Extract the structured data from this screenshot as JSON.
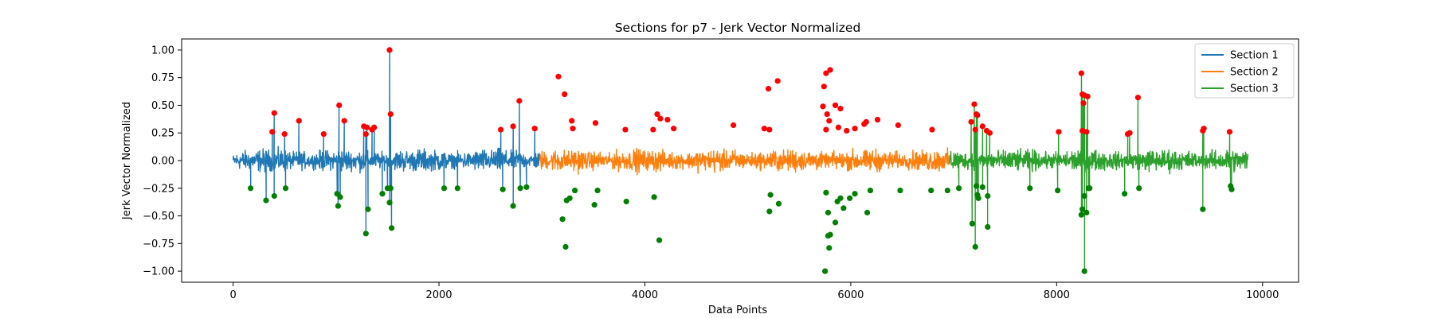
{
  "chart_data": {
    "type": "line",
    "title": "Sections for p7 - Jerk Vector Normalized",
    "xlabel": "Data Points",
    "ylabel": "Jerk Vector Normalized",
    "xlim": [
      -500,
      10350
    ],
    "ylim": [
      -1.1,
      1.1
    ],
    "xticks": [
      0,
      2000,
      4000,
      6000,
      8000,
      10000
    ],
    "yticks": [
      -1.0,
      -0.75,
      -0.5,
      -0.25,
      0.0,
      0.25,
      0.5,
      0.75,
      1.0
    ],
    "xtick_labels": [
      "0",
      "2000",
      "4000",
      "6000",
      "8000",
      "10000"
    ],
    "ytick_labels": [
      "−1.00",
      "−0.75",
      "−0.50",
      "−0.25",
      "0.00",
      "0.25",
      "0.50",
      "0.75",
      "1.00"
    ],
    "legend_position": "top-right",
    "grid": false,
    "series": [
      {
        "name": "Section 1",
        "color": "#1f77b4",
        "x_range": [
          0,
          2980
        ],
        "spikes": [
          [
            400,
            0.43
          ],
          [
            380,
            0.26
          ],
          [
            500,
            0.24
          ],
          [
            640,
            0.36
          ],
          [
            880,
            0.24
          ],
          [
            1030,
            0.5
          ],
          [
            1080,
            0.36
          ],
          [
            1270,
            0.31
          ],
          [
            1300,
            0.3
          ],
          [
            1290,
            0.24
          ],
          [
            1350,
            0.28
          ],
          [
            1370,
            0.3
          ],
          [
            1520,
            1.0
          ],
          [
            1530,
            0.42
          ],
          [
            2600,
            0.28
          ],
          [
            2720,
            0.31
          ],
          [
            2780,
            0.54
          ],
          [
            2930,
            0.29
          ],
          [
            170,
            -0.25
          ],
          [
            320,
            -0.36
          ],
          [
            400,
            -0.32
          ],
          [
            510,
            -0.25
          ],
          [
            1010,
            -0.3
          ],
          [
            1020,
            -0.41
          ],
          [
            1040,
            -0.33
          ],
          [
            1290,
            -0.66
          ],
          [
            1310,
            -0.44
          ],
          [
            1450,
            -0.3
          ],
          [
            1500,
            -0.25
          ],
          [
            1530,
            -0.25
          ],
          [
            1520,
            -0.38
          ],
          [
            1540,
            -0.61
          ],
          [
            2050,
            -0.25
          ],
          [
            2180,
            -0.25
          ],
          [
            2620,
            -0.26
          ],
          [
            2720,
            -0.41
          ],
          [
            2790,
            -0.25
          ],
          [
            2850,
            -0.24
          ]
        ]
      },
      {
        "name": "Section 2",
        "color": "#ff7f0e",
        "x_range": [
          2980,
          6960
        ],
        "spikes": [
          [
            3160,
            0.76
          ],
          [
            3220,
            0.6
          ],
          [
            3290,
            0.36
          ],
          [
            3300,
            0.29
          ],
          [
            3520,
            0.34
          ],
          [
            3810,
            0.28
          ],
          [
            4080,
            0.28
          ],
          [
            4120,
            0.42
          ],
          [
            4150,
            0.38
          ],
          [
            4220,
            0.37
          ],
          [
            4280,
            0.29
          ],
          [
            4860,
            0.32
          ],
          [
            5160,
            0.29
          ],
          [
            5210,
            0.28
          ],
          [
            5200,
            0.65
          ],
          [
            5290,
            0.72
          ],
          [
            5730,
            0.49
          ],
          [
            5740,
            0.67
          ],
          [
            5760,
            0.79
          ],
          [
            5800,
            0.82
          ],
          [
            5770,
            0.42
          ],
          [
            5790,
            0.36
          ],
          [
            5760,
            0.28
          ],
          [
            5850,
            0.5
          ],
          [
            5900,
            0.47
          ],
          [
            5880,
            0.3
          ],
          [
            5960,
            0.27
          ],
          [
            6040,
            0.29
          ],
          [
            6130,
            0.33
          ],
          [
            6150,
            0.35
          ],
          [
            6260,
            0.37
          ],
          [
            6460,
            0.32
          ],
          [
            6790,
            0.28
          ],
          [
            3200,
            -0.53
          ],
          [
            3230,
            -0.78
          ],
          [
            3240,
            -0.36
          ],
          [
            3270,
            -0.34
          ],
          [
            3320,
            -0.27
          ],
          [
            3510,
            -0.4
          ],
          [
            3540,
            -0.27
          ],
          [
            3820,
            -0.37
          ],
          [
            4090,
            -0.33
          ],
          [
            4140,
            -0.72
          ],
          [
            5210,
            -0.46
          ],
          [
            5220,
            -0.31
          ],
          [
            5300,
            -0.39
          ],
          [
            5750,
            -1.0
          ],
          [
            5760,
            -0.29
          ],
          [
            5780,
            -0.47
          ],
          [
            5780,
            -0.68
          ],
          [
            5790,
            -0.79
          ],
          [
            5800,
            -0.67
          ],
          [
            5850,
            -0.56
          ],
          [
            5870,
            -0.37
          ],
          [
            5900,
            -0.34
          ],
          [
            5930,
            -0.43
          ],
          [
            5990,
            -0.34
          ],
          [
            6040,
            -0.3
          ],
          [
            6160,
            -0.47
          ],
          [
            6190,
            -0.27
          ],
          [
            6480,
            -0.27
          ],
          [
            6780,
            -0.27
          ],
          [
            6940,
            -0.27
          ]
        ]
      },
      {
        "name": "Section 3",
        "color": "#2ca02c",
        "x_range": [
          6960,
          9860
        ],
        "spikes": [
          [
            7170,
            0.35
          ],
          [
            7200,
            0.51
          ],
          [
            7220,
            0.42
          ],
          [
            7230,
            0.41
          ],
          [
            7210,
            0.28
          ],
          [
            7280,
            0.31
          ],
          [
            7320,
            0.27
          ],
          [
            7350,
            0.25
          ],
          [
            8020,
            0.26
          ],
          [
            8240,
            0.79
          ],
          [
            8250,
            0.6
          ],
          [
            8260,
            0.52
          ],
          [
            8270,
            0.59
          ],
          [
            8300,
            0.58
          ],
          [
            8250,
            0.27
          ],
          [
            8290,
            0.26
          ],
          [
            8690,
            0.24
          ],
          [
            8710,
            0.25
          ],
          [
            8790,
            0.57
          ],
          [
            9420,
            0.27
          ],
          [
            9430,
            0.29
          ],
          [
            9680,
            0.26
          ],
          [
            7050,
            -0.25
          ],
          [
            7180,
            -0.57
          ],
          [
            7210,
            -0.78
          ],
          [
            7220,
            -0.23
          ],
          [
            7230,
            -0.31
          ],
          [
            7240,
            -0.34
          ],
          [
            7280,
            -0.24
          ],
          [
            7330,
            -0.32
          ],
          [
            7330,
            -0.6
          ],
          [
            7740,
            -0.25
          ],
          [
            8010,
            -0.27
          ],
          [
            8240,
            -0.49
          ],
          [
            8250,
            -0.44
          ],
          [
            8270,
            -0.32
          ],
          [
            8270,
            -1.0
          ],
          [
            8290,
            -0.47
          ],
          [
            8310,
            -0.25
          ],
          [
            8320,
            -0.25
          ],
          [
            8660,
            -0.3
          ],
          [
            8800,
            -0.25
          ],
          [
            9420,
            -0.44
          ],
          [
            9690,
            -0.23
          ],
          [
            9700,
            -0.26
          ]
        ]
      }
    ],
    "markers": {
      "peaks_color": "#ff0000",
      "troughs_color": "#008000"
    }
  }
}
